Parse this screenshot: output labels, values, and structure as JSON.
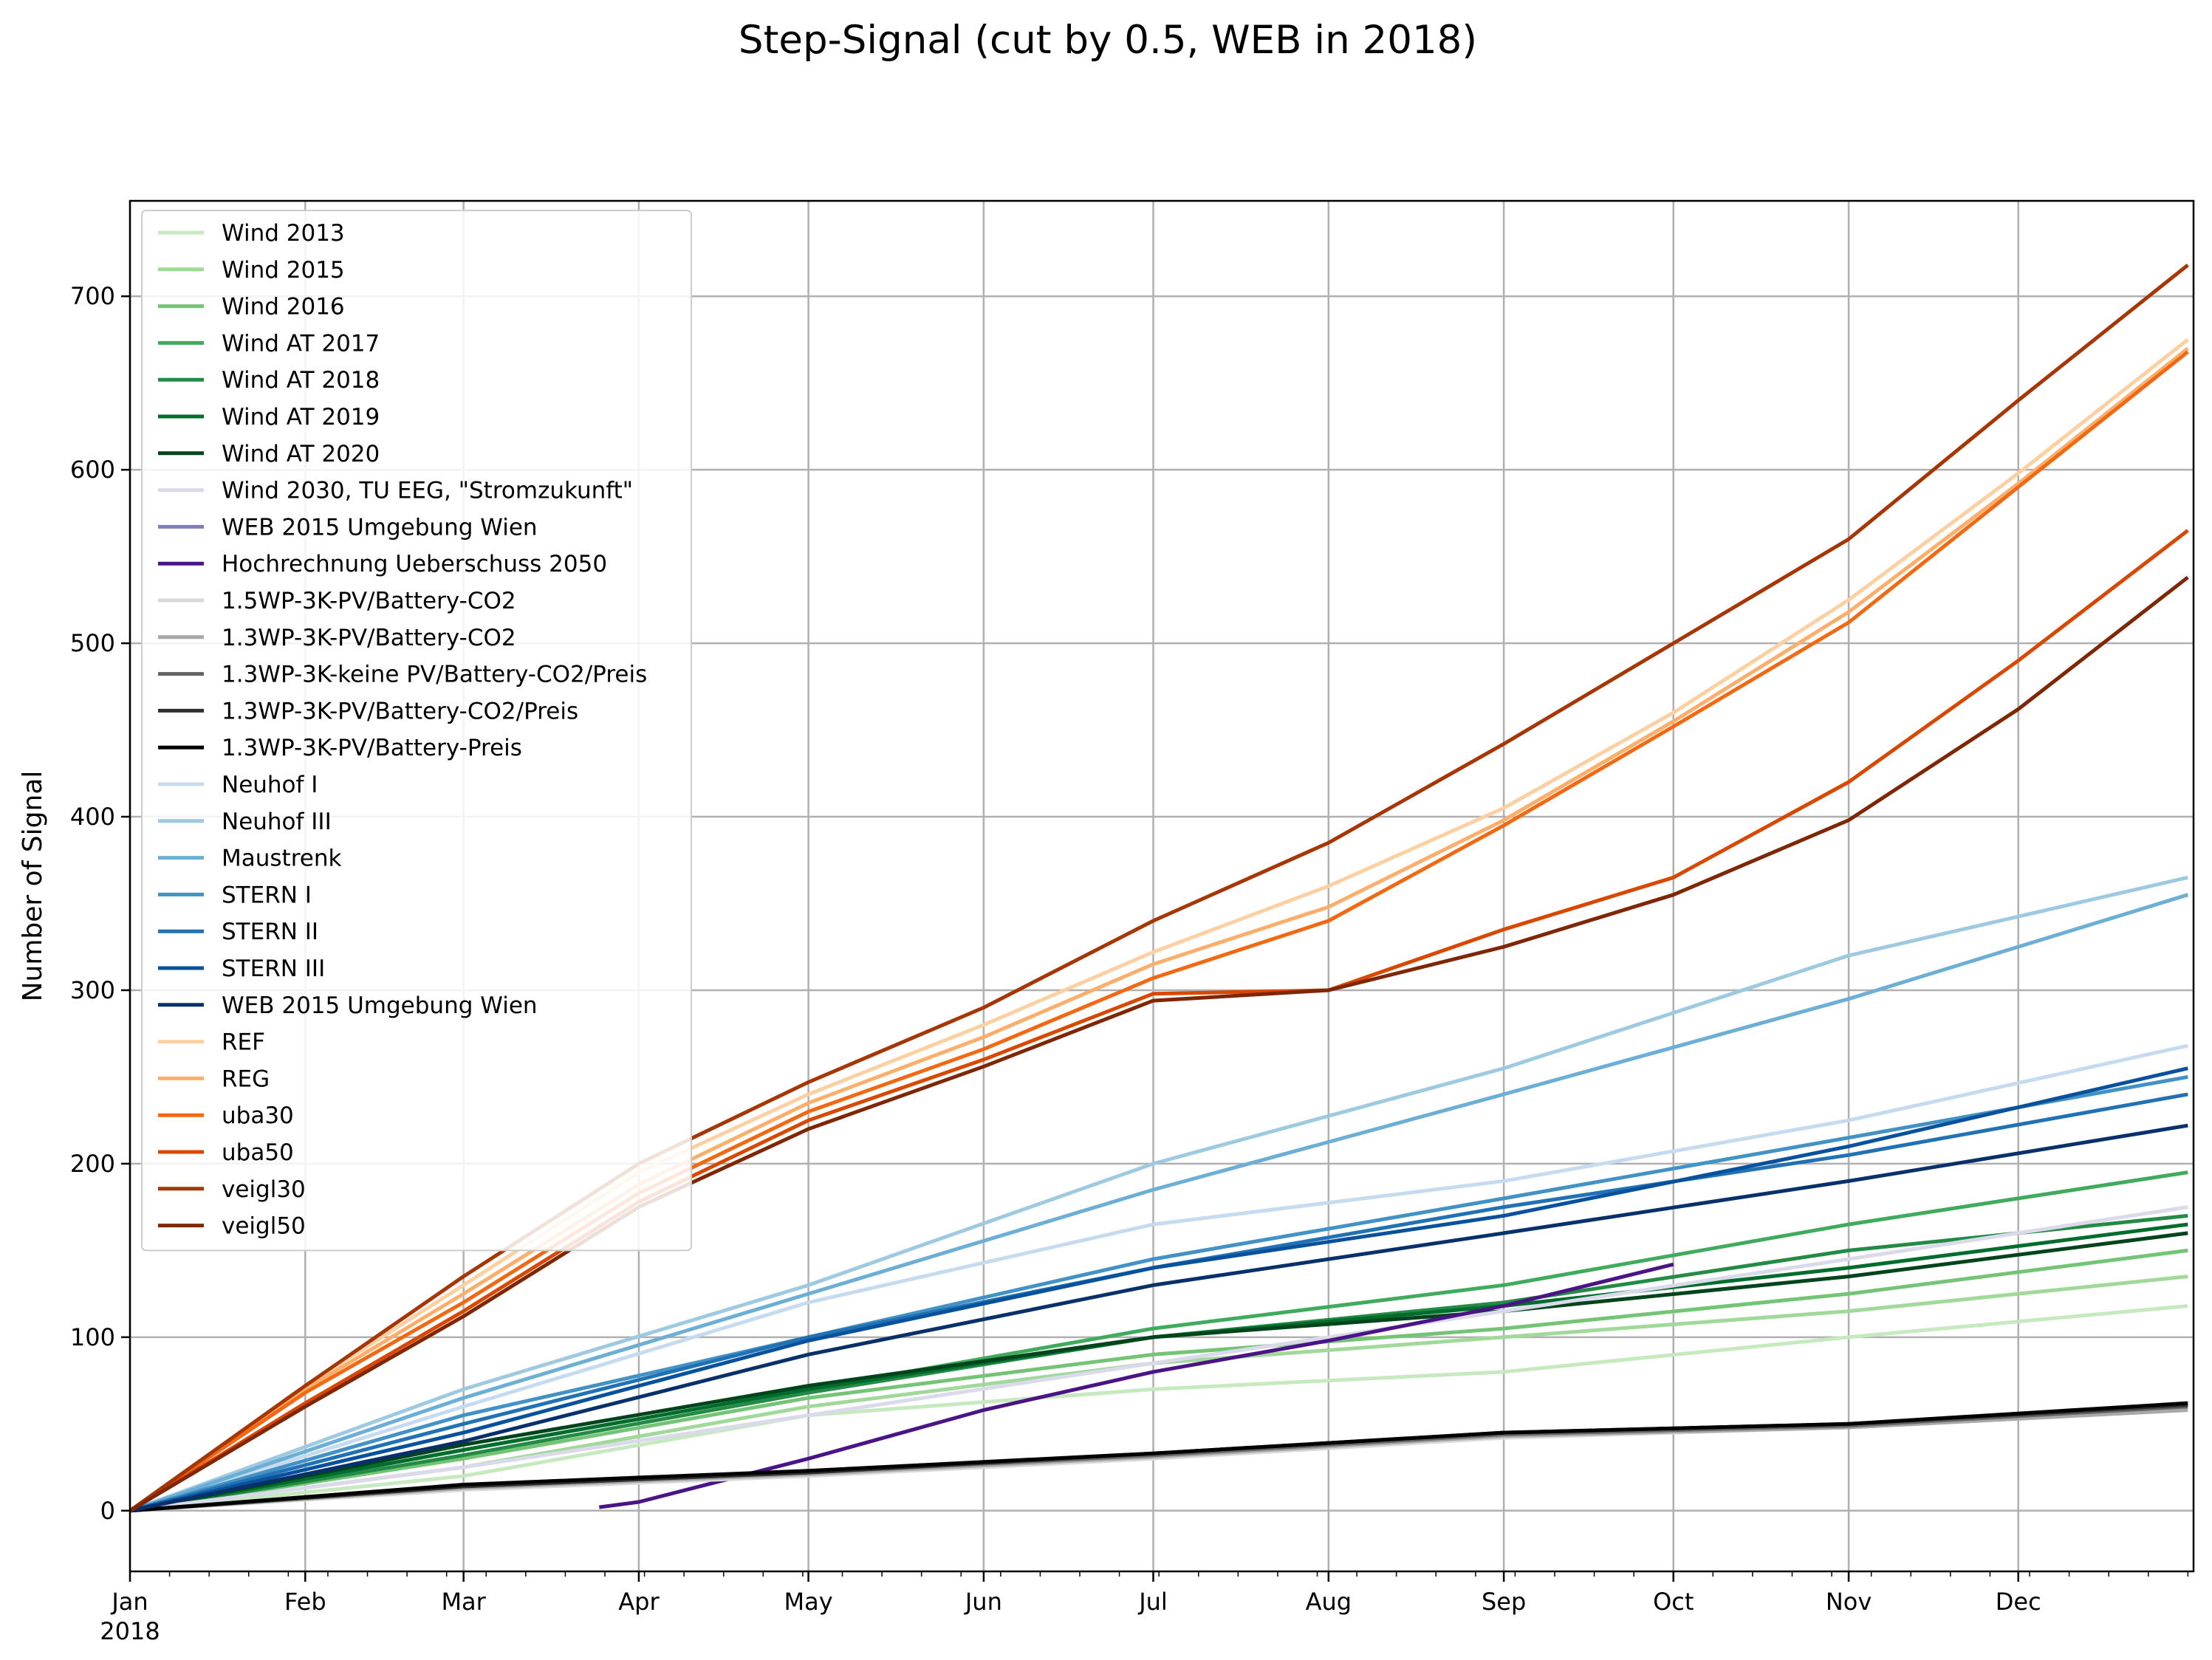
{
  "chart_data": {
    "type": "line",
    "title": "Step-Signal (cut by 0.5, WEB in 2018)",
    "xlabel": "",
    "ylabel": "Number of Signal",
    "xlim": [
      "2018-01-01",
      "2019-01-01"
    ],
    "ylim": [
      -35,
      755
    ],
    "x_ticks": [
      "Jan",
      "Feb",
      "Mar",
      "Apr",
      "May",
      "Jun",
      "Jul",
      "Aug",
      "Sep",
      "Oct",
      "Nov",
      "Dec"
    ],
    "x_tick_dates": [
      "2018-01-01",
      "2018-02-01",
      "2018-03-01",
      "2018-04-01",
      "2018-05-01",
      "2018-06-01",
      "2018-07-01",
      "2018-08-01",
      "2018-09-01",
      "2018-10-01",
      "2018-11-01",
      "2018-12-01"
    ],
    "x_year_label": "2018",
    "y_ticks": [
      0,
      100,
      200,
      300,
      400,
      500,
      600,
      700
    ],
    "grid": true,
    "legend_position": "upper-left",
    "series": [
      {
        "name": "Wind 2013",
        "color": "#c7e9c0",
        "x": [
          "2018-01-01",
          "2018-03-01",
          "2018-05-01",
          "2018-07-01",
          "2018-09-01",
          "2018-11-01",
          "2018-12-31"
        ],
        "values": [
          0,
          20,
          55,
          70,
          80,
          100,
          118
        ]
      },
      {
        "name": "Wind 2015",
        "color": "#a1d99b",
        "x": [
          "2018-01-01",
          "2018-03-01",
          "2018-05-01",
          "2018-07-01",
          "2018-09-01",
          "2018-11-01",
          "2018-12-31"
        ],
        "values": [
          0,
          25,
          60,
          85,
          100,
          115,
          135
        ]
      },
      {
        "name": "Wind 2016",
        "color": "#74c476",
        "x": [
          "2018-01-01",
          "2018-03-01",
          "2018-05-01",
          "2018-07-01",
          "2018-09-01",
          "2018-11-01",
          "2018-12-31"
        ],
        "values": [
          0,
          30,
          65,
          90,
          105,
          125,
          150
        ]
      },
      {
        "name": "Wind AT 2017",
        "color": "#41ab5d",
        "x": [
          "2018-01-01",
          "2018-03-01",
          "2018-05-01",
          "2018-07-01",
          "2018-09-01",
          "2018-11-01",
          "2018-12-31"
        ],
        "values": [
          0,
          35,
          70,
          105,
          130,
          165,
          195
        ]
      },
      {
        "name": "Wind AT 2018",
        "color": "#238b45",
        "x": [
          "2018-01-01",
          "2018-03-01",
          "2018-05-01",
          "2018-07-01",
          "2018-09-01",
          "2018-11-01",
          "2018-12-31"
        ],
        "values": [
          0,
          32,
          68,
          100,
          120,
          150,
          170
        ]
      },
      {
        "name": "Wind AT 2019",
        "color": "#006d2c",
        "x": [
          "2018-01-01",
          "2018-03-01",
          "2018-05-01",
          "2018-07-01",
          "2018-09-01",
          "2018-11-01",
          "2018-12-31"
        ],
        "values": [
          0,
          35,
          70,
          100,
          118,
          140,
          165
        ]
      },
      {
        "name": "Wind AT 2020",
        "color": "#00441b",
        "x": [
          "2018-01-01",
          "2018-03-01",
          "2018-05-01",
          "2018-07-01",
          "2018-09-01",
          "2018-11-01",
          "2018-12-31"
        ],
        "values": [
          0,
          38,
          72,
          100,
          115,
          135,
          160
        ]
      },
      {
        "name": "Wind 2030, TU EEG, \"Stromzukunft\"",
        "color": "#dadaeb",
        "x": [
          "2018-01-01",
          "2018-03-01",
          "2018-05-01",
          "2018-07-01",
          "2018-09-01",
          "2018-11-01",
          "2018-12-31"
        ],
        "values": [
          0,
          25,
          55,
          85,
          115,
          145,
          175
        ]
      },
      {
        "name": "WEB 2015 Umgebung Wien",
        "color": "#807dba",
        "x": [],
        "values": []
      },
      {
        "name": "Hochrechnung Ueberschuss 2050",
        "color": "#4a1486",
        "x": [
          "2018-03-25",
          "2018-04-01",
          "2018-05-01",
          "2018-06-01",
          "2018-07-01",
          "2018-08-01",
          "2018-09-01",
          "2018-10-01"
        ],
        "values": [
          2,
          5,
          30,
          58,
          80,
          98,
          118,
          142
        ]
      },
      {
        "name": "1.5WP-3K-PV/Battery-CO2",
        "color": "#d9d9d9",
        "x": [
          "2018-01-01",
          "2018-03-01",
          "2018-05-01",
          "2018-07-01",
          "2018-09-01",
          "2018-11-01",
          "2018-12-31"
        ],
        "values": [
          0,
          12,
          20,
          30,
          42,
          48,
          58
        ]
      },
      {
        "name": "1.3WP-3K-PV/Battery-CO2",
        "color": "#a8a8a8",
        "x": [
          "2018-01-01",
          "2018-03-01",
          "2018-05-01",
          "2018-07-01",
          "2018-09-01",
          "2018-11-01",
          "2018-12-31"
        ],
        "values": [
          0,
          13,
          21,
          31,
          43,
          48,
          58
        ]
      },
      {
        "name": "1.3WP-3K-keine PV/Battery-CO2/Preis",
        "color": "#636363",
        "x": [
          "2018-01-01",
          "2018-03-01",
          "2018-05-01",
          "2018-07-01",
          "2018-09-01",
          "2018-11-01",
          "2018-12-31"
        ],
        "values": [
          0,
          14,
          22,
          32,
          44,
          49,
          60
        ]
      },
      {
        "name": "1.3WP-3K-PV/Battery-CO2/Preis",
        "color": "#303030",
        "x": [
          "2018-01-01",
          "2018-03-01",
          "2018-05-01",
          "2018-07-01",
          "2018-09-01",
          "2018-11-01",
          "2018-12-31"
        ],
        "values": [
          0,
          14,
          22,
          33,
          45,
          50,
          61
        ]
      },
      {
        "name": "1.3WP-3K-PV/Battery-Preis",
        "color": "#000000",
        "x": [
          "2018-01-01",
          "2018-03-01",
          "2018-05-01",
          "2018-07-01",
          "2018-09-01",
          "2018-11-01",
          "2018-12-31"
        ],
        "values": [
          0,
          15,
          23,
          33,
          45,
          50,
          62
        ]
      },
      {
        "name": "Neuhof I",
        "color": "#c6dbef",
        "x": [
          "2018-01-01",
          "2018-03-01",
          "2018-05-01",
          "2018-07-01",
          "2018-09-01",
          "2018-11-01",
          "2018-12-31"
        ],
        "values": [
          0,
          60,
          120,
          165,
          190,
          225,
          268
        ]
      },
      {
        "name": "Neuhof III",
        "color": "#9ecae1",
        "x": [
          "2018-01-01",
          "2018-03-01",
          "2018-05-01",
          "2018-07-01",
          "2018-09-01",
          "2018-11-01",
          "2018-12-31"
        ],
        "values": [
          0,
          70,
          130,
          200,
          255,
          320,
          365
        ]
      },
      {
        "name": "Maustrenk",
        "color": "#6baed6",
        "x": [
          "2018-01-01",
          "2018-03-01",
          "2018-05-01",
          "2018-07-01",
          "2018-09-01",
          "2018-11-01",
          "2018-12-31"
        ],
        "values": [
          0,
          65,
          125,
          185,
          240,
          295,
          355
        ]
      },
      {
        "name": "STERN I",
        "color": "#4292c6",
        "x": [
          "2018-01-01",
          "2018-03-01",
          "2018-05-01",
          "2018-07-01",
          "2018-09-01",
          "2018-11-01",
          "2018-12-31"
        ],
        "values": [
          0,
          55,
          100,
          145,
          180,
          215,
          250
        ]
      },
      {
        "name": "STERN II",
        "color": "#2171b5",
        "x": [
          "2018-01-01",
          "2018-03-01",
          "2018-05-01",
          "2018-07-01",
          "2018-09-01",
          "2018-11-01",
          "2018-12-31"
        ],
        "values": [
          0,
          50,
          100,
          140,
          175,
          205,
          240
        ]
      },
      {
        "name": "STERN III",
        "color": "#08519c",
        "x": [
          "2018-01-01",
          "2018-03-01",
          "2018-05-01",
          "2018-07-01",
          "2018-09-01",
          "2018-11-01",
          "2018-12-31"
        ],
        "values": [
          0,
          45,
          98,
          140,
          170,
          210,
          255
        ]
      },
      {
        "name": "WEB 2015 Umgebung Wien",
        "color": "#08306b",
        "x": [
          "2018-01-01",
          "2018-03-01",
          "2018-05-01",
          "2018-07-01",
          "2018-09-01",
          "2018-11-01",
          "2018-12-31"
        ],
        "values": [
          0,
          40,
          90,
          130,
          160,
          190,
          222
        ]
      },
      {
        "name": "REF",
        "color": "#fdd0a2",
        "x": [
          "2018-01-01",
          "2018-02-01",
          "2018-03-01",
          "2018-04-01",
          "2018-05-01",
          "2018-06-01",
          "2018-07-01",
          "2018-08-01",
          "2018-09-01",
          "2018-10-01",
          "2018-11-01",
          "2018-12-01",
          "2018-12-31"
        ],
        "values": [
          0,
          72,
          130,
          195,
          240,
          280,
          322,
          360,
          405,
          460,
          525,
          598,
          675
        ]
      },
      {
        "name": "REG",
        "color": "#fdae6b",
        "x": [
          "2018-01-01",
          "2018-02-01",
          "2018-03-01",
          "2018-04-01",
          "2018-05-01",
          "2018-06-01",
          "2018-07-01",
          "2018-08-01",
          "2018-09-01",
          "2018-10-01",
          "2018-11-01",
          "2018-12-01",
          "2018-12-31"
        ],
        "values": [
          0,
          70,
          125,
          188,
          235,
          273,
          315,
          348,
          398,
          455,
          518,
          592,
          670
        ]
      },
      {
        "name": "uba30",
        "color": "#f16913",
        "x": [
          "2018-01-01",
          "2018-02-01",
          "2018-03-01",
          "2018-04-01",
          "2018-05-01",
          "2018-06-01",
          "2018-07-01",
          "2018-08-01",
          "2018-09-01",
          "2018-10-01",
          "2018-11-01",
          "2018-12-01",
          "2018-12-31"
        ],
        "values": [
          0,
          68,
          120,
          183,
          230,
          266,
          307,
          340,
          395,
          452,
          512,
          590,
          668
        ]
      },
      {
        "name": "uba50",
        "color": "#d94801",
        "x": [
          "2018-01-01",
          "2018-02-01",
          "2018-03-01",
          "2018-04-01",
          "2018-05-01",
          "2018-06-01",
          "2018-07-01",
          "2018-08-01",
          "2018-09-01",
          "2018-10-01",
          "2018-11-01",
          "2018-12-01",
          "2018-12-31"
        ],
        "values": [
          0,
          62,
          115,
          178,
          225,
          260,
          298,
          300,
          335,
          365,
          420,
          490,
          565
        ]
      },
      {
        "name": "veigl30",
        "color": "#a63603",
        "x": [
          "2018-01-01",
          "2018-02-01",
          "2018-03-01",
          "2018-04-01",
          "2018-05-01",
          "2018-06-01",
          "2018-07-01",
          "2018-08-01",
          "2018-09-01",
          "2018-10-01",
          "2018-11-01",
          "2018-12-01",
          "2018-12-31"
        ],
        "values": [
          0,
          72,
          135,
          200,
          247,
          290,
          340,
          385,
          442,
          500,
          560,
          640,
          718
        ]
      },
      {
        "name": "veigl50",
        "color": "#7f2704",
        "x": [
          "2018-01-01",
          "2018-02-01",
          "2018-03-01",
          "2018-04-01",
          "2018-05-01",
          "2018-06-01",
          "2018-07-01",
          "2018-08-01",
          "2018-09-01",
          "2018-10-01",
          "2018-11-01",
          "2018-12-01",
          "2018-12-31"
        ],
        "values": [
          0,
          60,
          112,
          175,
          220,
          256,
          294,
          300,
          325,
          355,
          398,
          462,
          538
        ]
      }
    ]
  }
}
